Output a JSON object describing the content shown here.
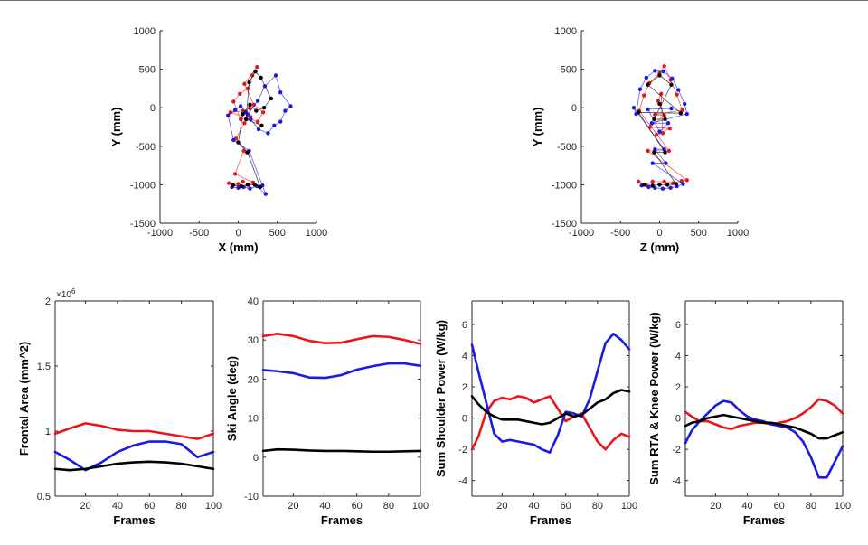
{
  "colors": {
    "red": "#e8161b",
    "blue": "#1a1ae6",
    "black": "#000000",
    "axis": "#262626"
  },
  "chart_data": [
    {
      "type": "scatter",
      "xlabel": "X (mm)",
      "ylabel": "Y (mm)",
      "xlim": [
        -1000,
        1000
      ],
      "ylim": [
        -1500,
        1000
      ],
      "xticks": [
        -1000,
        -500,
        0,
        500,
        1000
      ],
      "yticks": [
        -1500,
        -1000,
        -500,
        0,
        500,
        1000
      ],
      "series": [
        {
          "color": "red",
          "points": [
            [
              -120,
              -980
            ],
            [
              -60,
              -1000
            ],
            [
              0,
              -990
            ],
            [
              60,
              -960
            ],
            [
              130,
              -1000
            ],
            [
              190,
              -970
            ],
            [
              -40,
              -860
            ],
            [
              70,
              -560
            ],
            [
              110,
              -580
            ],
            [
              -30,
              -400
            ],
            [
              80,
              -200
            ],
            [
              160,
              -120
            ],
            [
              30,
              -150
            ],
            [
              -60,
              80
            ],
            [
              20,
              180
            ],
            [
              120,
              250
            ],
            [
              180,
              420
            ],
            [
              240,
              530
            ],
            [
              80,
              310
            ],
            [
              200,
              40
            ],
            [
              320,
              -60
            ],
            [
              250,
              -180
            ],
            [
              -100,
              -60
            ],
            [
              60,
              -40
            ],
            [
              150,
              -10
            ]
          ]
        },
        {
          "color": "blue",
          "points": [
            [
              -80,
              -1030
            ],
            [
              0,
              -1040
            ],
            [
              70,
              -1030
            ],
            [
              150,
              -1050
            ],
            [
              240,
              -1020
            ],
            [
              350,
              -1120
            ],
            [
              310,
              -1010
            ],
            [
              140,
              -560
            ],
            [
              -60,
              -420
            ],
            [
              -130,
              -100
            ],
            [
              -40,
              -30
            ],
            [
              30,
              20
            ],
            [
              100,
              -60
            ],
            [
              160,
              -150
            ],
            [
              260,
              -280
            ],
            [
              380,
              -330
            ],
            [
              460,
              -230
            ],
            [
              540,
              -180
            ],
            [
              600,
              -40
            ],
            [
              670,
              20
            ],
            [
              540,
              200
            ],
            [
              480,
              420
            ],
            [
              340,
              280
            ],
            [
              250,
              90
            ],
            [
              120,
              -90
            ]
          ]
        },
        {
          "color": "black",
          "points": [
            [
              -70,
              -1010
            ],
            [
              40,
              -1020
            ],
            [
              120,
              -1000
            ],
            [
              210,
              -1000
            ],
            [
              280,
              -1030
            ],
            [
              120,
              -580
            ],
            [
              0,
              -450
            ],
            [
              60,
              -80
            ],
            [
              150,
              40
            ],
            [
              230,
              -40
            ],
            [
              330,
              0
            ],
            [
              420,
              120
            ],
            [
              290,
              390
            ],
            [
              220,
              470
            ],
            [
              140,
              330
            ],
            [
              100,
              -150
            ],
            [
              300,
              -230
            ]
          ]
        }
      ]
    },
    {
      "type": "scatter",
      "xlabel": "Z (mm)",
      "ylabel": "Y (mm)",
      "xlim": [
        -1000,
        1000
      ],
      "ylim": [
        -1500,
        1000
      ],
      "xticks": [
        -1000,
        -500,
        0,
        500,
        1000
      ],
      "yticks": [
        -1500,
        -1000,
        -500,
        0,
        500,
        1000
      ],
      "series": [
        {
          "color": "red",
          "points": [
            [
              -270,
              -960
            ],
            [
              -180,
              -1000
            ],
            [
              -90,
              -960
            ],
            [
              60,
              -960
            ],
            [
              170,
              -980
            ],
            [
              280,
              -950
            ],
            [
              350,
              -940
            ],
            [
              -150,
              -560
            ],
            [
              120,
              -560
            ],
            [
              -260,
              -40
            ],
            [
              -200,
              160
            ],
            [
              -130,
              320
            ],
            [
              0,
              450
            ],
            [
              60,
              540
            ],
            [
              140,
              360
            ],
            [
              220,
              170
            ],
            [
              290,
              -30
            ],
            [
              -60,
              -90
            ],
            [
              60,
              -100
            ],
            [
              -120,
              -250
            ],
            [
              130,
              -270
            ],
            [
              -40,
              -350
            ],
            [
              40,
              -330
            ],
            [
              20,
              180
            ],
            [
              -20,
              90
            ]
          ]
        },
        {
          "color": "blue",
          "points": [
            [
              -230,
              -1010
            ],
            [
              -140,
              -1030
            ],
            [
              -60,
              -1040
            ],
            [
              40,
              -1050
            ],
            [
              140,
              -1040
            ],
            [
              220,
              -1020
            ],
            [
              300,
              -990
            ],
            [
              -90,
              -720
            ],
            [
              80,
              -720
            ],
            [
              -60,
              -540
            ],
            [
              60,
              -540
            ],
            [
              -330,
              0
            ],
            [
              -300,
              -80
            ],
            [
              -250,
              240
            ],
            [
              -170,
              390
            ],
            [
              -60,
              480
            ],
            [
              50,
              470
            ],
            [
              160,
              380
            ],
            [
              240,
              230
            ],
            [
              320,
              50
            ],
            [
              350,
              -80
            ],
            [
              -100,
              -200
            ],
            [
              110,
              -200
            ],
            [
              0,
              -310
            ],
            [
              -150,
              -20
            ],
            [
              150,
              -10
            ]
          ]
        },
        {
          "color": "black",
          "points": [
            [
              -200,
              -1000
            ],
            [
              -90,
              -1010
            ],
            [
              0,
              -1000
            ],
            [
              100,
              -1000
            ],
            [
              210,
              -990
            ],
            [
              -70,
              -580
            ],
            [
              70,
              -580
            ],
            [
              -270,
              -60
            ],
            [
              270,
              -70
            ],
            [
              -150,
              300
            ],
            [
              0,
              420
            ],
            [
              150,
              300
            ],
            [
              -70,
              -150
            ],
            [
              70,
              -150
            ],
            [
              0,
              50
            ]
          ]
        }
      ]
    },
    {
      "type": "line",
      "xlabel": "Frames",
      "ylabel": "Frontal Area (mm^2)",
      "xlim": [
        1,
        100
      ],
      "ylim": [
        0.5,
        2
      ],
      "xticks": [
        20,
        40,
        60,
        80,
        100
      ],
      "yticks": [
        0.5,
        1,
        1.5,
        2
      ],
      "ytick_labels": [
        "0.5",
        "1",
        "1.5",
        "2"
      ],
      "exponent": "×10",
      "exponent_power": "6",
      "x": [
        1,
        10,
        20,
        30,
        40,
        50,
        60,
        70,
        80,
        90,
        100
      ],
      "series": [
        {
          "color": "red",
          "values": [
            0.98,
            1.02,
            1.06,
            1.04,
            1.01,
            1.0,
            1.0,
            0.98,
            0.96,
            0.94,
            0.98
          ]
        },
        {
          "color": "blue",
          "values": [
            0.84,
            0.78,
            0.7,
            0.76,
            0.84,
            0.89,
            0.92,
            0.92,
            0.9,
            0.8,
            0.84
          ]
        },
        {
          "color": "black",
          "values": [
            0.71,
            0.7,
            0.71,
            0.73,
            0.75,
            0.76,
            0.765,
            0.76,
            0.75,
            0.73,
            0.71
          ]
        }
      ]
    },
    {
      "type": "line",
      "xlabel": "Frames",
      "ylabel": "Ski Angle (deg)",
      "xlim": [
        1,
        100
      ],
      "ylim": [
        -10,
        40
      ],
      "xticks": [
        20,
        40,
        60,
        80,
        100
      ],
      "yticks": [
        -10,
        0,
        10,
        20,
        30,
        40
      ],
      "x": [
        1,
        10,
        20,
        30,
        40,
        50,
        60,
        70,
        80,
        90,
        100
      ],
      "series": [
        {
          "color": "red",
          "values": [
            31,
            31.6,
            31,
            29.8,
            29.2,
            29.3,
            30.2,
            31,
            30.8,
            30,
            29
          ]
        },
        {
          "color": "blue",
          "values": [
            22.3,
            22,
            21.5,
            20.4,
            20.3,
            21,
            22.4,
            23.3,
            24,
            24,
            23.4
          ]
        },
        {
          "color": "black",
          "values": [
            1.6,
            2,
            1.9,
            1.7,
            1.6,
            1.6,
            1.5,
            1.4,
            1.4,
            1.5,
            1.6
          ]
        }
      ]
    },
    {
      "type": "line",
      "xlabel": "Frames",
      "ylabel": "Sum Shoulder Power (W/kg)",
      "xlim": [
        1,
        100
      ],
      "ylim": [
        -5,
        7.5
      ],
      "xticks": [
        20,
        40,
        60,
        80,
        100
      ],
      "yticks": [
        -4,
        -2,
        0,
        2,
        4,
        6
      ],
      "x": [
        1,
        5,
        10,
        15,
        20,
        25,
        30,
        35,
        40,
        45,
        50,
        55,
        60,
        65,
        70,
        75,
        80,
        85,
        90,
        95,
        100
      ],
      "series": [
        {
          "color": "red",
          "values": [
            -2,
            -1.2,
            0.4,
            1.1,
            1.3,
            1.2,
            1.4,
            1.3,
            1.0,
            1.2,
            1.4,
            0.6,
            -0.2,
            0.1,
            0.3,
            -0.6,
            -1.5,
            -2.0,
            -1.4,
            -1.0,
            -1.2
          ]
        },
        {
          "color": "blue",
          "values": [
            4.7,
            3.0,
            1.0,
            -1.0,
            -1.5,
            -1.4,
            -1.5,
            -1.6,
            -1.7,
            -2.0,
            -2.2,
            -1.1,
            0.4,
            0.3,
            0.1,
            1.2,
            3.0,
            4.8,
            5.4,
            5.0,
            4.4
          ]
        },
        {
          "color": "black",
          "values": [
            1.4,
            0.9,
            0.4,
            0.1,
            -0.1,
            -0.1,
            -0.1,
            -0.2,
            -0.3,
            -0.4,
            -0.3,
            0.0,
            0.3,
            0.1,
            0.2,
            0.6,
            1.0,
            1.2,
            1.6,
            1.8,
            1.7
          ]
        }
      ]
    },
    {
      "type": "line",
      "xlabel": "Frames",
      "ylabel": "Sum RTA & Knee Power (W/kg)",
      "xlim": [
        1,
        100
      ],
      "ylim": [
        -5,
        7.5
      ],
      "xticks": [
        20,
        40,
        60,
        80,
        100
      ],
      "yticks": [
        -4,
        -2,
        0,
        2,
        4,
        6
      ],
      "x": [
        1,
        5,
        10,
        15,
        20,
        25,
        30,
        35,
        40,
        45,
        50,
        55,
        60,
        65,
        70,
        75,
        80,
        85,
        90,
        95,
        100
      ],
      "series": [
        {
          "color": "red",
          "values": [
            0.4,
            0.1,
            -0.2,
            -0.2,
            -0.4,
            -0.6,
            -0.7,
            -0.5,
            -0.4,
            -0.3,
            -0.3,
            -0.4,
            -0.3,
            -0.2,
            0.0,
            0.3,
            0.7,
            1.2,
            1.1,
            0.8,
            0.3
          ]
        },
        {
          "color": "blue",
          "values": [
            -1.6,
            -0.8,
            -0.2,
            0.3,
            0.8,
            1.1,
            1.0,
            0.5,
            0.1,
            -0.1,
            -0.2,
            -0.4,
            -0.5,
            -0.6,
            -0.9,
            -1.5,
            -2.5,
            -3.8,
            -3.8,
            -2.8,
            -1.8
          ]
        },
        {
          "color": "black",
          "values": [
            -0.5,
            -0.3,
            -0.2,
            0.0,
            0.1,
            0.2,
            0.1,
            0.0,
            -0.1,
            -0.2,
            -0.3,
            -0.3,
            -0.4,
            -0.5,
            -0.6,
            -0.8,
            -1.0,
            -1.3,
            -1.3,
            -1.1,
            -0.9
          ]
        }
      ]
    }
  ]
}
